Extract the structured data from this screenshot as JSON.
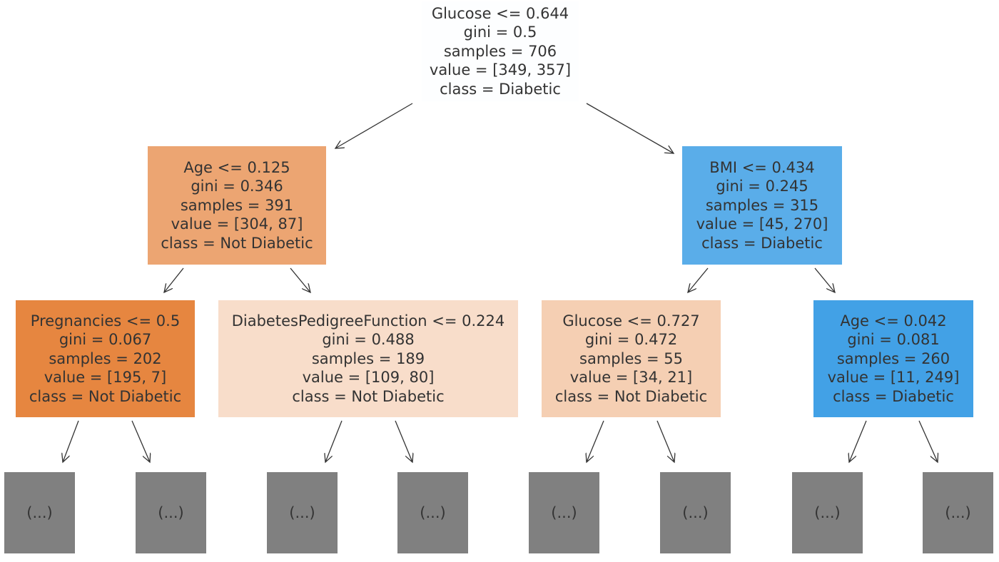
{
  "tree": {
    "root": {
      "lines": [
        "Glucose <= 0.644",
        "gini = 0.5",
        "samples = 706",
        "value = [349, 357]",
        "class = Diabetic"
      ],
      "fill": "#fdfeff"
    },
    "level1": [
      {
        "lines": [
          "Age <= 0.125",
          "gini = 0.346",
          "samples = 391",
          "value = [304, 87]",
          "class = Not Diabetic"
        ],
        "fill": "#eca572"
      },
      {
        "lines": [
          "BMI <= 0.434",
          "gini = 0.245",
          "samples = 315",
          "value = [45, 270]",
          "class = Diabetic"
        ],
        "fill": "#5aade9"
      }
    ],
    "level2": [
      {
        "lines": [
          "Pregnancies <= 0.5",
          "gini = 0.067",
          "samples = 202",
          "value = [195, 7]",
          "class = Not Diabetic"
        ],
        "fill": "#e68640"
      },
      {
        "lines": [
          "DiabetesPedigreeFunction <= 0.224",
          "gini = 0.488",
          "samples = 189",
          "value = [109, 80]",
          "class = Not Diabetic"
        ],
        "fill": "#f8ddca"
      },
      {
        "lines": [
          "Glucose <= 0.727",
          "gini = 0.472",
          "samples = 55",
          "value = [34, 21]",
          "class = Not Diabetic"
        ],
        "fill": "#f5cfb3"
      },
      {
        "lines": [
          "Age <= 0.042",
          "gini = 0.081",
          "samples = 260",
          "value = [11, 249]",
          "class = Diabetic"
        ],
        "fill": "#42a1e6"
      }
    ],
    "truncated_label": "(...)",
    "truncated_fill": "#808080",
    "edge_color": "#333333"
  }
}
